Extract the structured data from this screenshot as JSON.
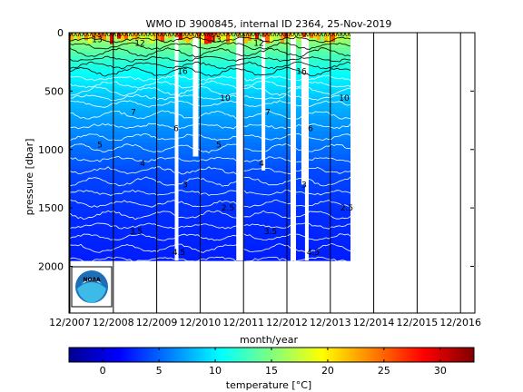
{
  "chart_data": {
    "type": "heatmap",
    "title": "WMO ID 3900845, internal ID 2364, 25-Nov-2019",
    "xlabel": "month/year",
    "ylabel": "pressure [dbar]",
    "x_ticks": [
      "12/2007",
      "12/2008",
      "12/2009",
      "12/2010",
      "12/2011",
      "12/2012",
      "12/2013",
      "12/2014",
      "12/2015",
      "12/2016"
    ],
    "y_ticks": [
      0,
      500,
      1000,
      1500,
      2000
    ],
    "ylim": [
      2400,
      0
    ],
    "y_reversed": true,
    "data_x_range": [
      "12/2007",
      "08/2014"
    ],
    "data_max_pressure_dbar": 1950,
    "temperature_profile": [
      {
        "pressure": 0,
        "temperature": 17
      },
      {
        "pressure": 150,
        "temperature": 14
      },
      {
        "pressure": 250,
        "temperature": 12
      },
      {
        "pressure": 400,
        "temperature": 10
      },
      {
        "pressure": 600,
        "temperature": 8
      },
      {
        "pressure": 900,
        "temperature": 6
      },
      {
        "pressure": 1200,
        "temperature": 4
      },
      {
        "pressure": 1600,
        "temperature": 3
      },
      {
        "pressure": 1950,
        "temperature": 2.5
      }
    ],
    "surface_warm_max": 30,
    "data_gaps": [
      "05/2010",
      "10/2010",
      "10/2011",
      "05/2012",
      "01/2013",
      "04/2013",
      "05/2013"
    ],
    "contour_labels": [
      "13",
      "12",
      "16",
      "10",
      "7",
      "6",
      "5",
      "4",
      "3",
      "2.5",
      "3.5",
      "4.5"
    ],
    "colorbar": {
      "label": "temperature [°C]",
      "ticks": [
        0,
        5,
        10,
        15,
        20,
        25,
        30
      ],
      "range": [
        -3,
        33
      ],
      "colormap": "jet"
    },
    "logo_text": "NOAA"
  }
}
